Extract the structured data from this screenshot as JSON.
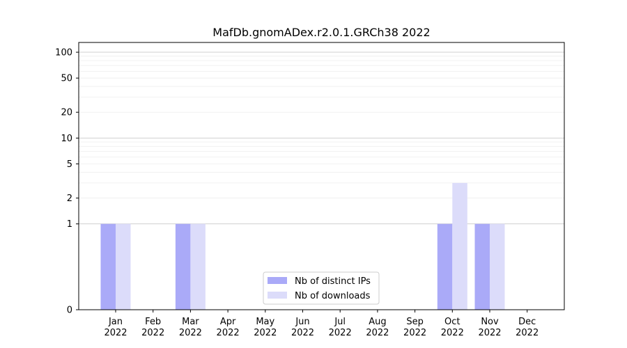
{
  "chart_data": {
    "type": "bar",
    "title": "MafDb.gnomADex.r2.0.1.GRCh38 2022",
    "xlabel": "",
    "ylabel": "",
    "yscale": "symlog",
    "ylim": [
      0,
      130
    ],
    "categories": [
      [
        "Jan",
        "2022"
      ],
      [
        "Feb",
        "2022"
      ],
      [
        "Mar",
        "2022"
      ],
      [
        "Apr",
        "2022"
      ],
      [
        "May",
        "2022"
      ],
      [
        "Jun",
        "2022"
      ],
      [
        "Jul",
        "2022"
      ],
      [
        "Aug",
        "2022"
      ],
      [
        "Sep",
        "2022"
      ],
      [
        "Oct",
        "2022"
      ],
      [
        "Nov",
        "2022"
      ],
      [
        "Dec",
        "2022"
      ]
    ],
    "yticks": [
      0,
      1,
      2,
      5,
      10,
      20,
      50,
      100
    ],
    "series": [
      {
        "name": "Nb of distinct IPs",
        "color": "#aaaaf8",
        "values": [
          1,
          0,
          1,
          0,
          0,
          0,
          0,
          0,
          0,
          1,
          1,
          0
        ]
      },
      {
        "name": "Nb of downloads",
        "color": "#dcdcfa",
        "values": [
          1,
          0,
          1,
          0,
          0,
          0,
          0,
          0,
          0,
          3,
          1,
          0
        ]
      }
    ],
    "grid": true,
    "legend": "lower-center"
  }
}
